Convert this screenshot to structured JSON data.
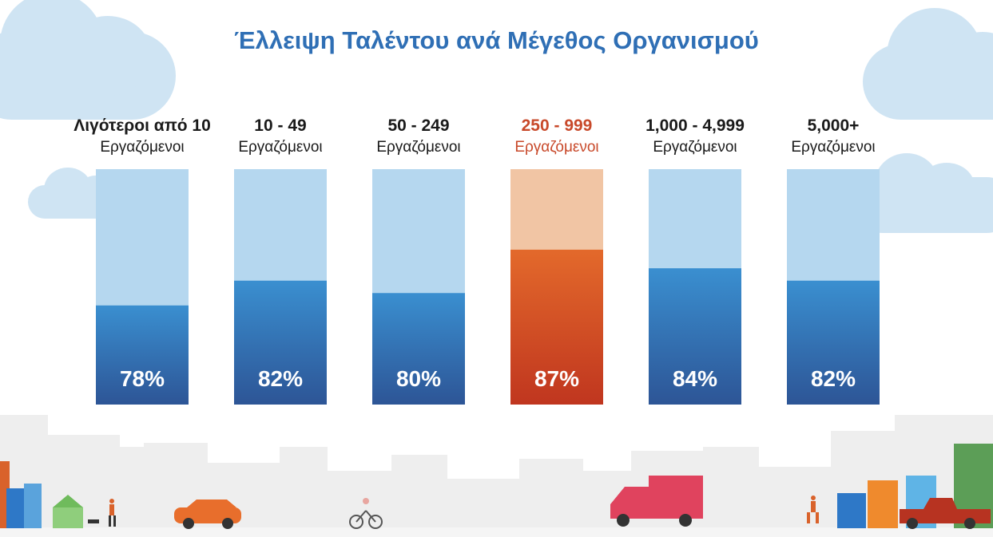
{
  "title": "Έλλειψη Ταλέντου ανά Μέγεθος Οργανισμού",
  "colors": {
    "title": "#2f6fb5",
    "bar_top": "#3a8fd0",
    "bar_bottom": "#2d5596",
    "bar_track": "#b5d7ef",
    "highlight_top": "#e3692b",
    "highlight_bottom": "#c0361f",
    "highlight_track": "#f1c5a4",
    "highlight_text": "#c8492a"
  },
  "chart_data": {
    "type": "bar",
    "title": "Έλλειψη Ταλέντου ανά Μέγεθος Οργανισμού",
    "categories": [
      "Λιγότεροι από 10 Εργαζόμενοι",
      "10 - 49 Εργαζόμενοι",
      "50 - 249 Εργαζόμενοι",
      "250 - 999 Εργαζόμενοι",
      "1,000 - 4,999 Εργαζόμενοι",
      "5,000+ Εργαζόμενοι"
    ],
    "category_titles": [
      "Λιγότεροι από 10",
      "10 - 49",
      "50 - 249",
      "250 - 999",
      "1,000 - 4,999",
      "5,000+"
    ],
    "category_subtitle": "Εργαζόμενοι",
    "values": [
      78,
      82,
      80,
      87,
      84,
      82
    ],
    "value_labels": [
      "78%",
      "82%",
      "80%",
      "87%",
      "84%",
      "82%"
    ],
    "highlight_index": 3,
    "unit": "%",
    "ylim": [
      0,
      100
    ],
    "xlabel": "",
    "ylabel": "",
    "grid": false,
    "legend": "none"
  }
}
